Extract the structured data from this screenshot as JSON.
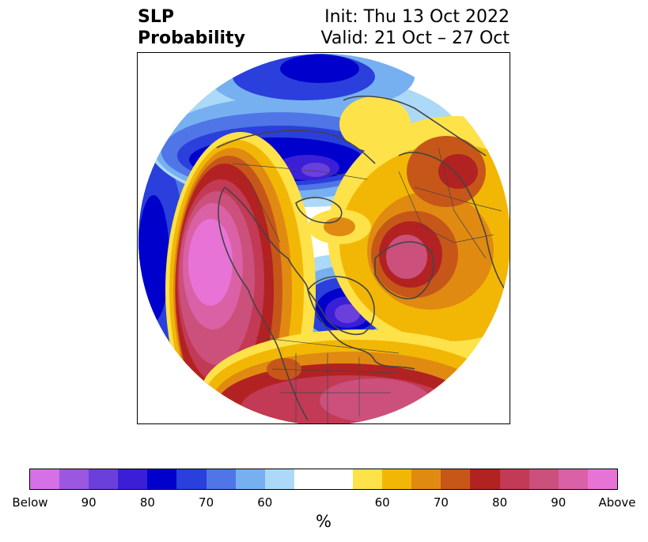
{
  "header": {
    "title_line1": "SLP",
    "title_line2": "Probability",
    "init_text": "Init: Thu 13 Oct 2022",
    "valid_text": "Valid: 21 Oct – 27 Oct"
  },
  "map": {
    "projection": "north-polar-stereographic",
    "regions": [
      {
        "name": "canadian-arctic-siberia-below",
        "category": "below",
        "peak": "Below"
      },
      {
        "name": "hudson-bay-below",
        "category": "below",
        "peak": "Below"
      },
      {
        "name": "north-pacific-below",
        "category": "below",
        "peak": "80"
      },
      {
        "name": "western-north-america-above",
        "category": "above",
        "peak": "Above"
      },
      {
        "name": "eastern-us-above",
        "category": "above",
        "peak": "90"
      },
      {
        "name": "scandinavia-above",
        "category": "above",
        "peak": "80"
      },
      {
        "name": "eastern-europe-above",
        "category": "above",
        "peak": "70"
      }
    ]
  },
  "colorbar": {
    "label": "%",
    "colors": [
      "#d670e6",
      "#9b57e0",
      "#6b3fdb",
      "#3a1fd6",
      "#0000cc",
      "#2a3fdb",
      "#4f75e6",
      "#76b0f0",
      "#acd9f7",
      "#ffffff",
      "#ffffff",
      "#fde24a",
      "#f2b705",
      "#e08a12",
      "#c65719",
      "#b22222",
      "#c23a55",
      "#cc507c",
      "#da61a6",
      "#e873d7"
    ],
    "tick_labels": [
      "Below",
      "90",
      "80",
      "70",
      "60",
      "60",
      "70",
      "80",
      "90",
      "Above"
    ]
  }
}
